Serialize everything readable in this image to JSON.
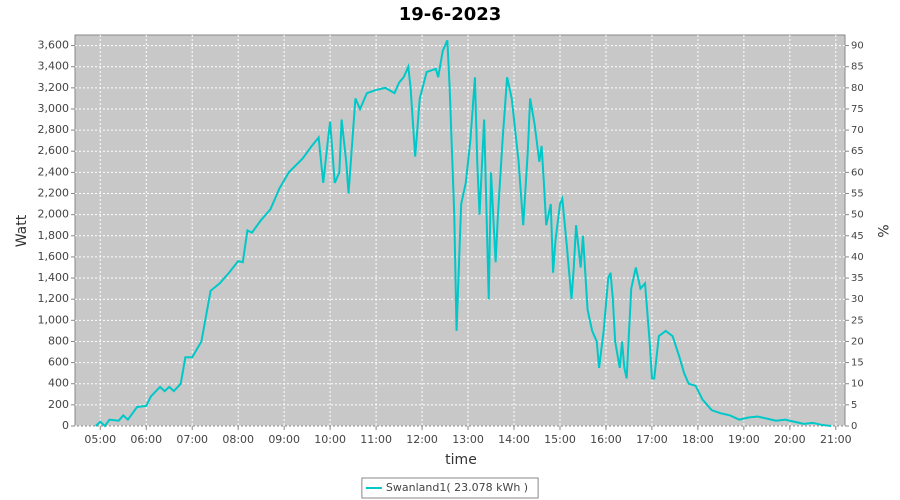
{
  "chart_data": {
    "type": "line",
    "title": "19-6-2023",
    "x_label": "time",
    "y_label": "Watt",
    "y2_label": "%",
    "xlim": [
      4.45,
      21.2
    ],
    "xticks": [
      {
        "value": 5,
        "label": "05:00"
      },
      {
        "value": 6,
        "label": "06:00"
      },
      {
        "value": 7,
        "label": "07:00"
      },
      {
        "value": 8,
        "label": "08:00"
      },
      {
        "value": 9,
        "label": "09:00"
      },
      {
        "value": 10,
        "label": "10:00"
      },
      {
        "value": 11,
        "label": "11:00"
      },
      {
        "value": 12,
        "label": "12:00"
      },
      {
        "value": 13,
        "label": "13:00"
      },
      {
        "value": 14,
        "label": "14:00"
      },
      {
        "value": 15,
        "label": "15:00"
      },
      {
        "value": 16,
        "label": "16:00"
      },
      {
        "value": 17,
        "label": "17:00"
      },
      {
        "value": 18,
        "label": "18:00"
      },
      {
        "value": 19,
        "label": "19:00"
      },
      {
        "value": 20,
        "label": "20:00"
      },
      {
        "value": 21,
        "label": "21:00"
      }
    ],
    "ylim": [
      0,
      3700
    ],
    "yticks": [
      0,
      200,
      400,
      600,
      800,
      {
        "value": 1000,
        "label": "1,000"
      },
      {
        "value": 1200,
        "label": "1,200"
      },
      {
        "value": 1400,
        "label": "1,400"
      },
      {
        "value": 1600,
        "label": "1,600"
      },
      {
        "value": 1800,
        "label": "1,800"
      },
      {
        "value": 2000,
        "label": "2,000"
      },
      {
        "value": 2200,
        "label": "2,200"
      },
      {
        "value": 2400,
        "label": "2,400"
      },
      {
        "value": 2600,
        "label": "2,600"
      },
      {
        "value": 2800,
        "label": "2,800"
      },
      {
        "value": 3000,
        "label": "3,000"
      },
      {
        "value": 3200,
        "label": "3,200"
      },
      {
        "value": 3400,
        "label": "3,400"
      },
      {
        "value": 3600,
        "label": "3,600"
      }
    ],
    "y2lim": [
      0,
      92.5
    ],
    "y2ticks": [
      0,
      5,
      10,
      15,
      20,
      25,
      30,
      35,
      40,
      45,
      50,
      55,
      60,
      65,
      70,
      75,
      80,
      85,
      90
    ],
    "grid": true,
    "legend": "bottom",
    "background": "#c8c8c8",
    "x": [
      4.9,
      5.0,
      5.1,
      5.2,
      5.4,
      5.5,
      5.6,
      5.8,
      6.0,
      6.1,
      6.3,
      6.4,
      6.5,
      6.6,
      6.75,
      6.85,
      7.0,
      7.2,
      7.4,
      7.6,
      7.8,
      8.0,
      8.1,
      8.2,
      8.3,
      8.5,
      8.7,
      8.9,
      9.1,
      9.4,
      9.6,
      9.75,
      9.85,
      9.95,
      10.0,
      10.1,
      10.2,
      10.25,
      10.35,
      10.4,
      10.5,
      10.55,
      10.65,
      10.8,
      11.0,
      11.2,
      11.4,
      11.5,
      11.6,
      11.7,
      11.75,
      11.85,
      11.95,
      12.1,
      12.3,
      12.35,
      12.45,
      12.55,
      12.6,
      12.7,
      12.75,
      12.85,
      12.95,
      13.05,
      13.15,
      13.2,
      13.25,
      13.35,
      13.45,
      13.5,
      13.6,
      13.65,
      13.75,
      13.85,
      13.95,
      14.05,
      14.1,
      14.2,
      14.3,
      14.35,
      14.45,
      14.55,
      14.6,
      14.65,
      14.7,
      14.8,
      14.85,
      14.9,
      15.0,
      15.05,
      15.15,
      15.25,
      15.3,
      15.35,
      15.45,
      15.5,
      15.6,
      15.7,
      15.8,
      15.85,
      15.95,
      16.05,
      16.1,
      16.15,
      16.2,
      16.3,
      16.35,
      16.4,
      16.45,
      16.55,
      16.65,
      16.75,
      16.85,
      16.95,
      17.0,
      17.05,
      17.15,
      17.3,
      17.45,
      17.6,
      17.7,
      17.8,
      17.95,
      18.1,
      18.3,
      18.5,
      18.7,
      18.9,
      19.1,
      19.3,
      19.5,
      19.7,
      19.9,
      20.1,
      20.3,
      20.5,
      20.7,
      20.9
    ],
    "series": [
      {
        "name": "Swanland1( 23.078 kWh )",
        "color": "#00c8c8",
        "values": [
          0,
          40,
          0,
          60,
          50,
          100,
          60,
          180,
          190,
          280,
          370,
          330,
          370,
          330,
          400,
          650,
          650,
          800,
          1280,
          1350,
          1450,
          1560,
          1550,
          1850,
          1830,
          1950,
          2050,
          2250,
          2400,
          2530,
          2650,
          2730,
          2300,
          2700,
          2880,
          2300,
          2400,
          2900,
          2500,
          2200,
          2800,
          3100,
          3000,
          3150,
          3180,
          3200,
          3150,
          3250,
          3300,
          3400,
          3200,
          2550,
          3100,
          3350,
          3380,
          3300,
          3550,
          3650,
          3200,
          2000,
          900,
          2100,
          2300,
          2700,
          3300,
          2500,
          2000,
          2900,
          1200,
          2400,
          1550,
          2000,
          2700,
          3300,
          3100,
          2700,
          2500,
          1900,
          2600,
          3100,
          2850,
          2500,
          2650,
          2300,
          1900,
          2100,
          1450,
          1750,
          2100,
          2150,
          1700,
          1200,
          1500,
          1900,
          1500,
          1800,
          1100,
          900,
          800,
          550,
          900,
          1400,
          1450,
          1200,
          800,
          550,
          800,
          550,
          450,
          1300,
          1500,
          1300,
          1350,
          800,
          450,
          450,
          850,
          900,
          850,
          650,
          500,
          400,
          380,
          250,
          150,
          120,
          100,
          60,
          80,
          90,
          70,
          50,
          60,
          40,
          20,
          30,
          10,
          0
        ]
      }
    ]
  }
}
